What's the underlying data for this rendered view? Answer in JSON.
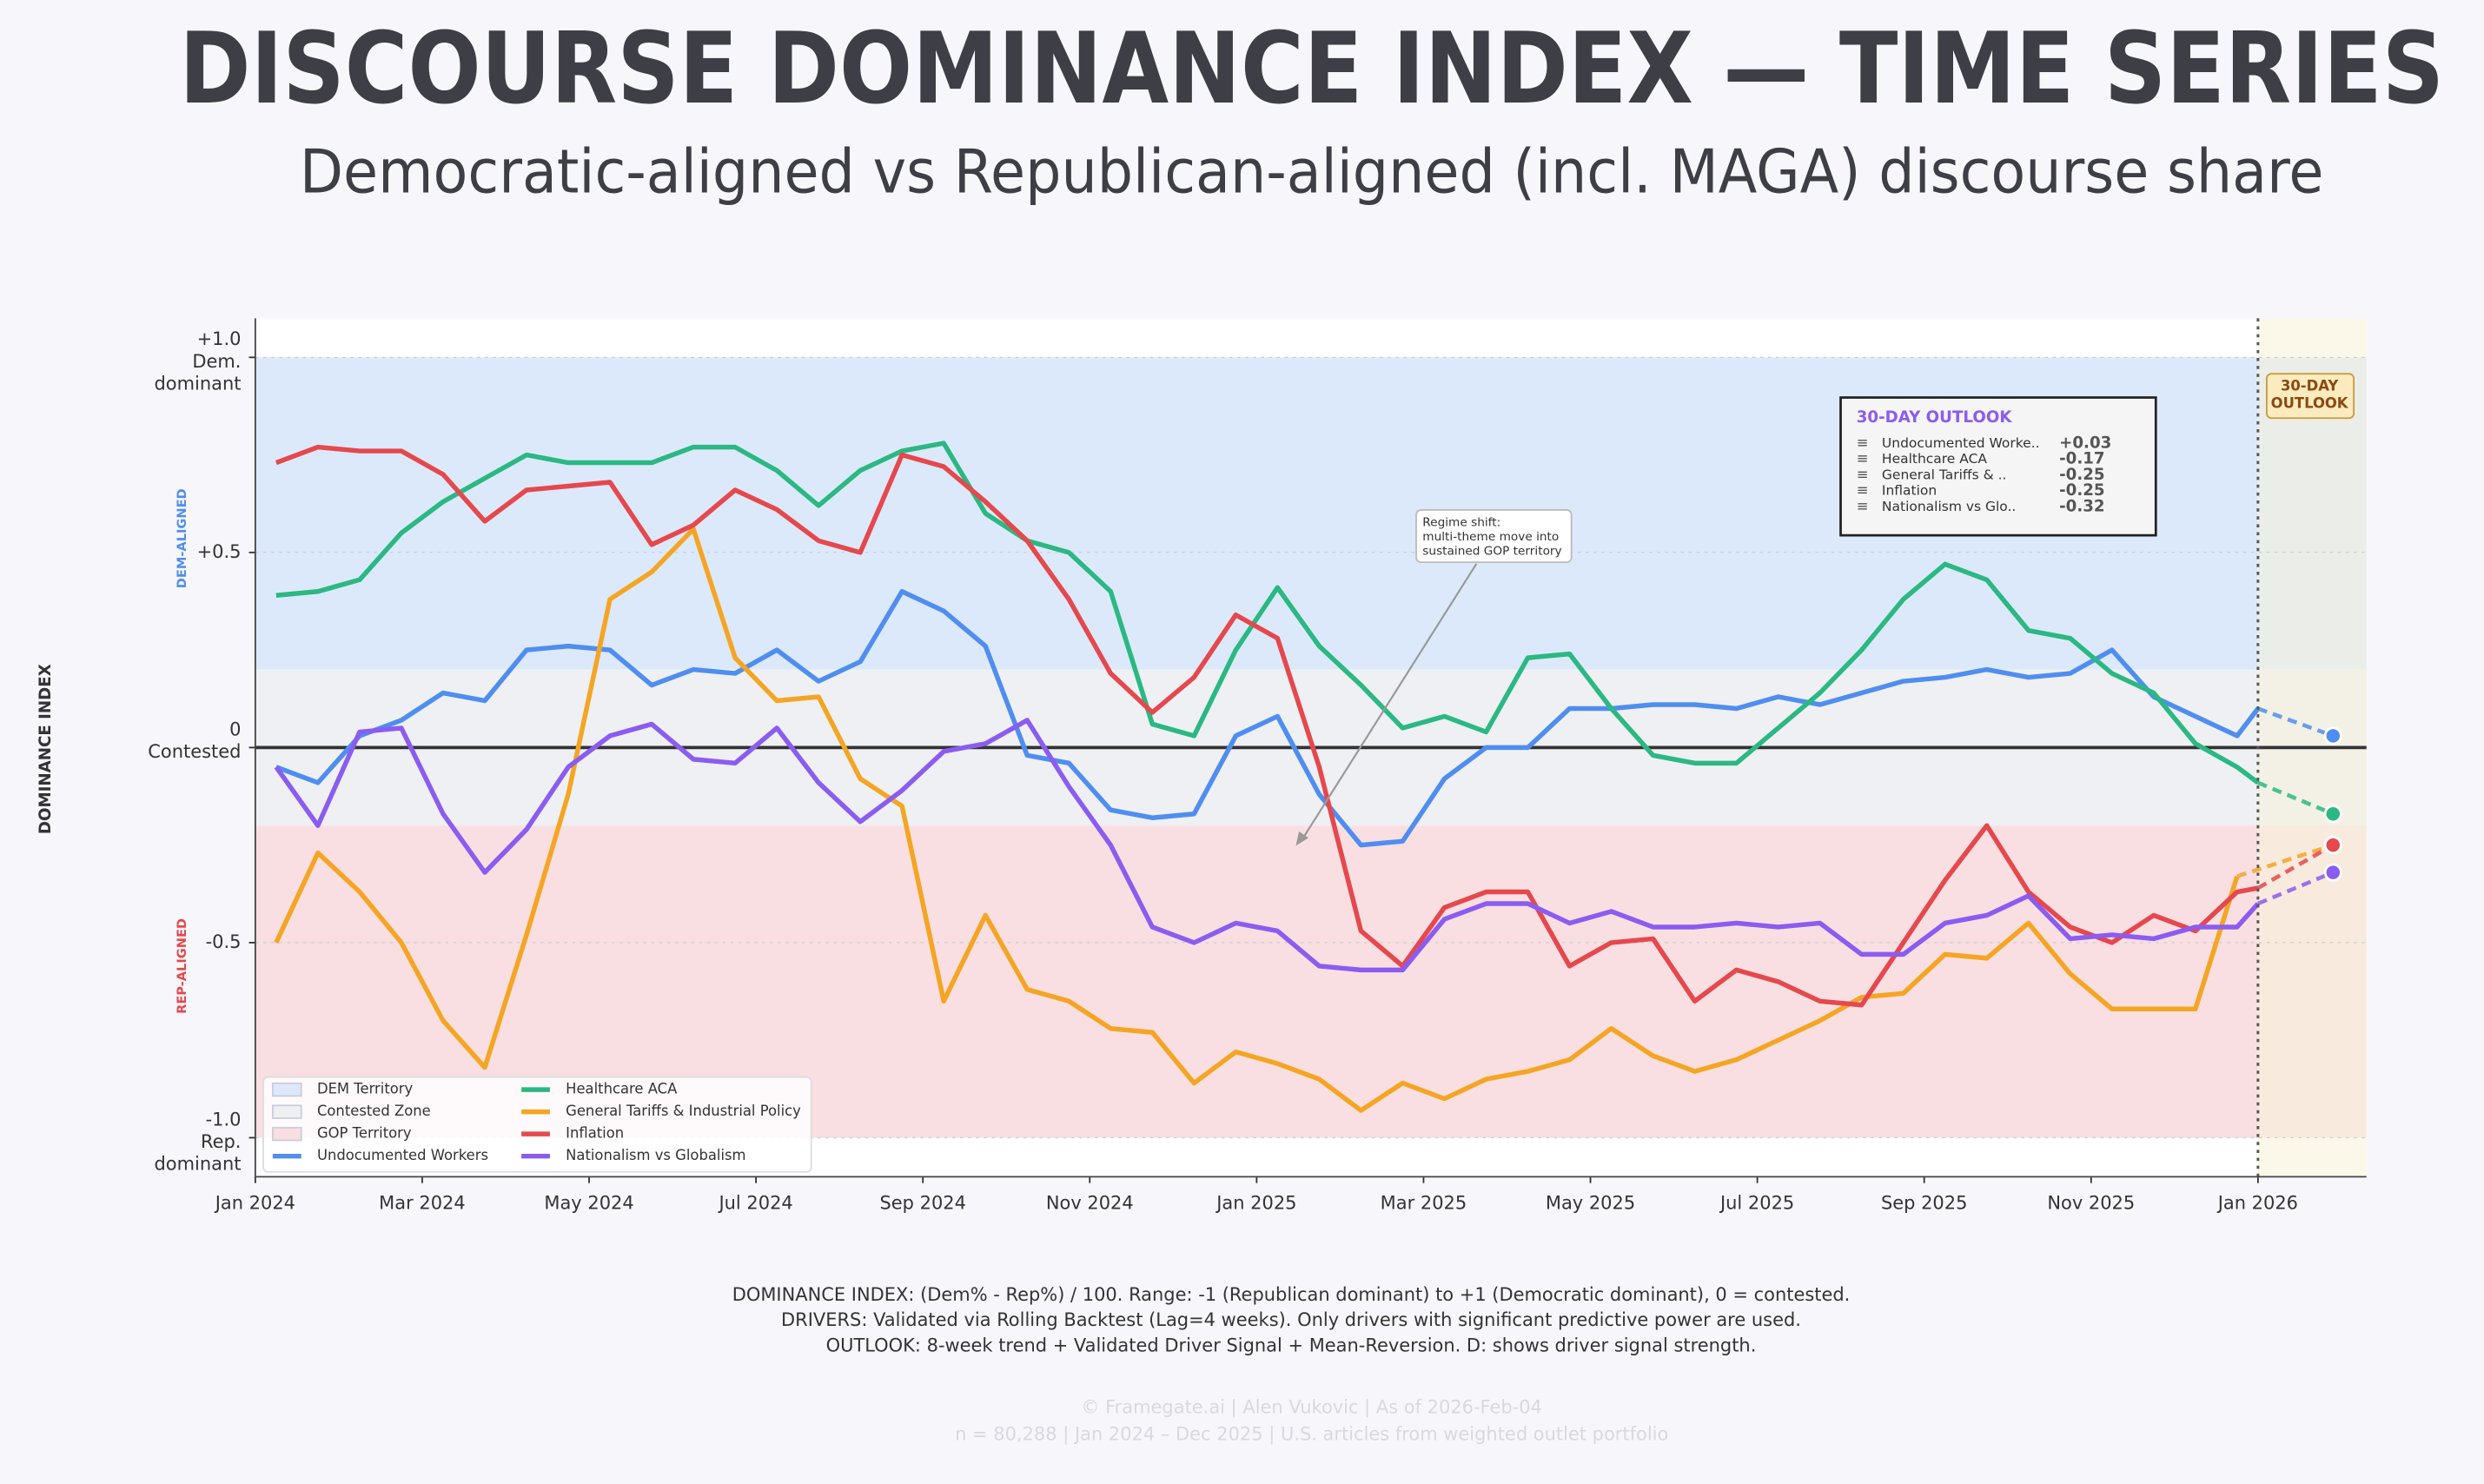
{
  "chart_data": {
    "type": "line",
    "title": "DISCOURSE DOMINANCE INDEX — TIME SERIES",
    "subtitle": "Democratic-aligned vs Republican-aligned (incl. MAGA) discourse share",
    "y_label": "DOMINANCE INDEX",
    "dem_side_label": "DEM-ALIGNED",
    "rep_side_label": "REP-ALIGNED",
    "xlim": [
      0,
      25.3
    ],
    "ylim": [
      -1.1,
      1.1
    ],
    "xticks": [
      {
        "value": 0,
        "label": "Jan 2024"
      },
      {
        "value": 2,
        "label": "Mar 2024"
      },
      {
        "value": 4,
        "label": "May 2024"
      },
      {
        "value": 6,
        "label": "Jul 2024"
      },
      {
        "value": 8,
        "label": "Sep 2024"
      },
      {
        "value": 10,
        "label": "Nov 2024"
      },
      {
        "value": 12,
        "label": "Jan 2025"
      },
      {
        "value": 14,
        "label": "Mar 2025"
      },
      {
        "value": 16,
        "label": "May 2025"
      },
      {
        "value": 18,
        "label": "Jul 2025"
      },
      {
        "value": 20,
        "label": "Sep 2025"
      },
      {
        "value": 22,
        "label": "Nov 2025"
      },
      {
        "value": 24,
        "label": "Jan 2026"
      }
    ],
    "yticks": [
      {
        "value": 1,
        "label": "+1.0"
      },
      {
        "value": 0.5,
        "label": "+0.5"
      },
      0,
      {
        "value": -0.5,
        "label": "-0.5"
      },
      {
        "value": -1,
        "label": "-1.0"
      }
    ],
    "ytick_notes": [
      {
        "value": 1,
        "lines": [
          "Dem.",
          "dominant"
        ]
      },
      {
        "value": 0,
        "lines": [
          "Contested"
        ]
      },
      {
        "value": -1,
        "lines": [
          "Rep.",
          "dominant"
        ]
      }
    ],
    "grid": true,
    "bands": [
      {
        "name": "DEM Territory",
        "from": 0.2,
        "to": 1,
        "color": "#dce9fa"
      },
      {
        "name": "Contested Zone",
        "from": -0.2,
        "to": 0.2,
        "color": "#eef0f3"
      },
      {
        "name": "GOP Territory",
        "from": -1,
        "to": -0.2,
        "color": "#f9dfe1"
      }
    ],
    "x": [
      0.25,
      0.75,
      1.25,
      1.75,
      2.25,
      2.75,
      3.25,
      3.75,
      4.25,
      4.75,
      5.25,
      5.75,
      6.25,
      6.75,
      7.25,
      7.75,
      8.25,
      8.75,
      9.25,
      9.75,
      10.25,
      10.75,
      11.25,
      11.75,
      12.25,
      12.75,
      13.25,
      13.75,
      14.25,
      14.75,
      15.25,
      15.75,
      16.25,
      16.75,
      17.25,
      17.75,
      18.25,
      18.75,
      19.25,
      19.75,
      20.25,
      20.75,
      21.25,
      21.75,
      22.25,
      22.75,
      23.25,
      23.75,
      24.0
    ],
    "series": [
      {
        "name": "Undocumented Workers",
        "color": "#4f8ef0",
        "values": [
          -0.05,
          -0.09,
          0.03,
          0.07,
          0.14,
          0.12,
          0.25,
          0.26,
          0.25,
          0.16,
          0.2,
          0.19,
          0.25,
          0.17,
          0.22,
          0.4,
          0.35,
          0.26,
          -0.02,
          -0.04,
          -0.16,
          -0.18,
          -0.17,
          0.03,
          0.08,
          -0.12,
          -0.25,
          -0.24,
          -0.08,
          0.0,
          0.0,
          0.1,
          0.1,
          0.11,
          0.11,
          0.1,
          0.13,
          0.11,
          0.14,
          0.17,
          0.18,
          0.2,
          0.18,
          0.19,
          0.25,
          0.13,
          0.08,
          0.03,
          0.1
        ]
      },
      {
        "name": "Healthcare ACA",
        "color": "#2bb882",
        "values": [
          0.39,
          0.4,
          0.43,
          0.55,
          0.63,
          0.69,
          0.75,
          0.73,
          0.73,
          0.73,
          0.77,
          0.77,
          0.71,
          0.62,
          0.71,
          0.76,
          0.78,
          0.6,
          0.53,
          0.5,
          0.4,
          0.06,
          0.03,
          0.25,
          0.41,
          0.26,
          0.16,
          0.05,
          0.08,
          0.04,
          0.23,
          0.24,
          0.1,
          -0.02,
          -0.04,
          -0.04,
          0.05,
          0.14,
          0.25,
          0.38,
          0.47,
          0.43,
          0.3,
          0.28,
          0.19,
          0.14,
          0.01,
          -0.05,
          -0.09
        ]
      },
      {
        "name": "General Tariffs & Industrial Policy",
        "color": "#f5a524",
        "values": [
          -0.5,
          -0.27,
          -0.37,
          -0.5,
          -0.7,
          -0.82,
          -0.48,
          -0.12,
          0.38,
          0.45,
          0.56,
          0.23,
          0.12,
          0.13,
          -0.08,
          -0.15,
          -0.65,
          -0.43,
          -0.62,
          -0.65,
          -0.72,
          -0.73,
          -0.86,
          -0.78,
          -0.81,
          -0.85,
          -0.93,
          -0.86,
          -0.9,
          -0.85,
          -0.83,
          -0.8,
          -0.72,
          -0.79,
          -0.83,
          -0.8,
          -0.75,
          -0.7,
          -0.64,
          -0.63,
          -0.53,
          -0.54,
          -0.45,
          -0.58,
          -0.67,
          -0.67,
          -0.67,
          -0.33,
          null
        ]
      },
      {
        "name": "Inflation",
        "color": "#e5484d",
        "values": [
          0.73,
          0.77,
          0.76,
          0.76,
          0.7,
          0.58,
          0.66,
          0.67,
          0.68,
          0.52,
          0.57,
          0.66,
          0.61,
          0.53,
          0.5,
          0.75,
          0.72,
          0.63,
          0.53,
          0.38,
          0.19,
          0.09,
          0.18,
          0.34,
          0.28,
          -0.05,
          -0.47,
          -0.56,
          -0.41,
          -0.37,
          -0.37,
          -0.56,
          -0.5,
          -0.49,
          -0.65,
          -0.57,
          -0.6,
          -0.65,
          -0.66,
          -0.5,
          -0.34,
          -0.2,
          -0.37,
          -0.46,
          -0.5,
          -0.43,
          -0.47,
          -0.37,
          -0.36
        ]
      },
      {
        "name": "Nationalism vs Globalism",
        "color": "#8b5cf0",
        "values": [
          -0.05,
          -0.2,
          0.04,
          0.05,
          -0.17,
          -0.32,
          -0.21,
          -0.05,
          0.03,
          0.06,
          -0.03,
          -0.04,
          0.05,
          -0.09,
          -0.19,
          -0.11,
          -0.01,
          0.01,
          0.07,
          -0.1,
          -0.25,
          -0.46,
          -0.5,
          -0.45,
          -0.47,
          -0.56,
          -0.57,
          -0.57,
          -0.44,
          -0.4,
          -0.4,
          -0.45,
          -0.42,
          -0.46,
          -0.46,
          -0.45,
          -0.46,
          -0.45,
          -0.53,
          -0.53,
          -0.45,
          -0.43,
          -0.38,
          -0.49,
          -0.48,
          -0.49,
          -0.46,
          -0.46,
          -0.4
        ]
      }
    ],
    "forecast_start": 24,
    "forecast_x": 24.9,
    "forecast_label": [
      "30-DAY",
      "OUTLOOK"
    ],
    "outlook": {
      "title": "30-DAY OUTLOOK",
      "rows": [
        {
          "marker": "≡",
          "name": "Undocumented Worke..",
          "value": 0.03,
          "label": "+0.03"
        },
        {
          "marker": "≡",
          "name": "Healthcare ACA",
          "value": -0.17,
          "label": "-0.17"
        },
        {
          "marker": "≡",
          "name": "General Tariffs & ..",
          "value": -0.25,
          "label": "-0.25"
        },
        {
          "marker": "≡",
          "name": "Inflation",
          "value": -0.25,
          "label": "-0.25"
        },
        {
          "marker": "≡",
          "name": "Nationalism vs Glo..",
          "value": -0.32,
          "label": "-0.32"
        }
      ]
    },
    "annotation": {
      "lines": [
        "Regime shift:",
        "multi-theme move into",
        "sustained GOP territory"
      ]
    }
  },
  "footer": {
    "notes": [
      "DOMINANCE INDEX: (Dem% - Rep%) / 100. Range: -1 (Republican dominant) to +1 (Democratic dominant), 0 = contested.",
      "DRIVERS: Validated via Rolling Backtest (Lag=4 weeks). Only drivers with significant predictive power are used.",
      "OUTLOOK: 8-week trend + Validated Driver Signal + Mean-Reversion. D: shows driver signal strength."
    ],
    "credits": [
      "© Framegate.ai | Alen Vukovic | As of 2026-Feb-04",
      "n = 80,288 | Jan 2024 – Dec 2025 | U.S. articles from weighted outlet portfolio"
    ]
  }
}
